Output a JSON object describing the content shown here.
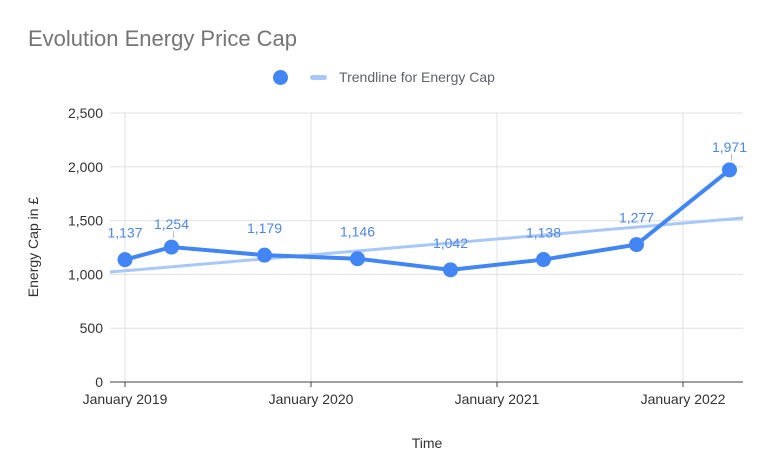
{
  "title": "Evolution Energy Price Cap",
  "legend": {
    "series_marker": "dot-icon",
    "trendline_marker": "dash-icon",
    "trendline_label": "Trendline for Energy Cap"
  },
  "colors": {
    "series": "#4285f4",
    "trendline": "#a8c7fa",
    "data_label_text": "#4e87ea",
    "title_text": "#757575",
    "legend_text": "#5f6368",
    "axis_title_text": "#333333",
    "tick_text": "#333333",
    "gridline": "#e0e0e0",
    "axis_line": "#424242",
    "leader_line": "#bdbdbd",
    "background": "#ffffff"
  },
  "chart_data": {
    "type": "line",
    "title": "Evolution Energy Price Cap",
    "xlabel": "Time",
    "ylabel": "Energy Cap in £",
    "grid": true,
    "legend_position": "top",
    "ylim": [
      0,
      2500
    ],
    "y_ticks": [
      {
        "value": 0,
        "label": "0"
      },
      {
        "value": 500,
        "label": "500"
      },
      {
        "value": 1000,
        "label": "1,000"
      },
      {
        "value": 1500,
        "label": "1,500"
      },
      {
        "value": 2000,
        "label": "2,000"
      },
      {
        "value": 2500,
        "label": "2,500"
      }
    ],
    "x_tick_labels": [
      "January 2019",
      "January 2020",
      "January 2021",
      "January 2022"
    ],
    "x_gridline_month_offsets": [
      0,
      12,
      24,
      36
    ],
    "series": [
      {
        "name": "Energy Cap",
        "points": [
          {
            "date": "January 2019",
            "month_offset": 0,
            "value": 1137,
            "label": "1,137",
            "leader": false
          },
          {
            "date": "April 2019",
            "month_offset": 3,
            "value": 1254,
            "label": "1,254",
            "leader": true
          },
          {
            "date": "October 2019",
            "month_offset": 9,
            "value": 1179,
            "label": "1,179",
            "leader": false
          },
          {
            "date": "April 2020",
            "month_offset": 15,
            "value": 1146,
            "label": "1,146",
            "leader": false
          },
          {
            "date": "October 2020",
            "month_offset": 21,
            "value": 1042,
            "label": "1,042",
            "leader": false
          },
          {
            "date": "April 2021",
            "month_offset": 27,
            "value": 1138,
            "label": "1,138",
            "leader": false
          },
          {
            "date": "October 2021",
            "month_offset": 33,
            "value": 1277,
            "label": "1,277",
            "leader": false
          },
          {
            "date": "April 2022",
            "month_offset": 39,
            "value": 1971,
            "label": "1,971",
            "leader": true
          }
        ]
      }
    ],
    "trendline": {
      "name": "Trendline for Energy Cap",
      "start": {
        "month_offset": -0.97,
        "value": 1022
      },
      "end": {
        "month_offset": 39.87,
        "value": 1524
      }
    }
  }
}
